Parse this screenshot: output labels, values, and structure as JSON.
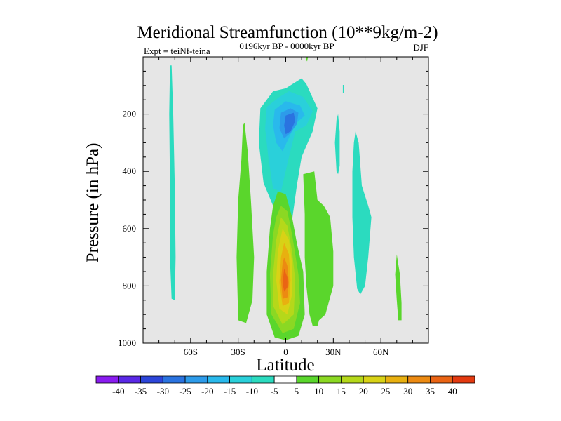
{
  "chart_data": {
    "type": "contour",
    "title": "Meridional Streamfunction (10**9kg/m-2)",
    "subtitle": "0196kyr BP - 0000kyr BP",
    "left_annotation": "Expt = teiNf-teina",
    "right_annotation": "DJF",
    "xlabel": "Latitude",
    "ylabel": "Pressure (in hPa)",
    "xlim": [
      -90,
      90
    ],
    "ylim": [
      1000,
      0
    ],
    "x_ticks": [
      {
        "value": -60,
        "label": "60S"
      },
      {
        "value": -30,
        "label": "30S"
      },
      {
        "value": 0,
        "label": "0"
      },
      {
        "value": 30,
        "label": "30N"
      },
      {
        "value": 60,
        "label": "60N"
      }
    ],
    "y_ticks": [
      {
        "value": 200,
        "label": "200"
      },
      {
        "value": 400,
        "label": "400"
      },
      {
        "value": 600,
        "label": "600"
      },
      {
        "value": 800,
        "label": "800"
      },
      {
        "value": 1000,
        "label": "1000"
      }
    ],
    "background_color": "#e6e6e6",
    "colorbar": {
      "colors": [
        "#8a1cf0",
        "#5a28e6",
        "#2c45d9",
        "#2a73e0",
        "#2d9bea",
        "#29b9ec",
        "#2ad0da",
        "#2bdbbf",
        "#ffffff",
        "#5ad62c",
        "#8bd823",
        "#b5d81a",
        "#d8d216",
        "#e8b010",
        "#ec8a12",
        "#ea6414",
        "#e33a10"
      ],
      "labels": [
        "-40",
        "-35",
        "-30",
        "-25",
        "-20",
        "-15",
        "-10",
        "-5",
        "5",
        "10",
        "15",
        "20",
        "25",
        "30",
        "35",
        "40"
      ]
    },
    "regions": [
      {
        "name": "sh-high-lat-cell",
        "color": "#2bdbbf",
        "points": [
          [
            -72,
            30
          ],
          [
            -71,
            200
          ],
          [
            -70,
            450
          ],
          [
            -69.5,
            700
          ],
          [
            -70,
            850
          ],
          [
            -72,
            845
          ],
          [
            -73,
            700
          ],
          [
            -73,
            450
          ],
          [
            -73.5,
            200
          ],
          [
            -73,
            30
          ]
        ]
      },
      {
        "name": "sh-subtropical-green-cell",
        "color": "#5ad62c",
        "points": [
          [
            -26,
            230
          ],
          [
            -24,
            330
          ],
          [
            -22,
            500
          ],
          [
            -20,
            700
          ],
          [
            -21,
            850
          ],
          [
            -25,
            930
          ],
          [
            -30,
            920
          ],
          [
            -31,
            700
          ],
          [
            -30,
            500
          ],
          [
            -28,
            360
          ],
          [
            -27,
            240
          ]
        ]
      },
      {
        "name": "upper-tropical-cell-outer",
        "color": "#2bdbbf",
        "points": [
          [
            -16,
            180
          ],
          [
            -8,
            120
          ],
          [
            0,
            110
          ],
          [
            10,
            75
          ],
          [
            13,
            95
          ],
          [
            20,
            180
          ],
          [
            17,
            260
          ],
          [
            10,
            350
          ],
          [
            7,
            450
          ],
          [
            3,
            610
          ],
          [
            -5,
            610
          ],
          [
            -8,
            520
          ],
          [
            -14,
            440
          ],
          [
            -17,
            300
          ]
        ]
      },
      {
        "name": "upper-tropical-cell-m10",
        "color": "#2ad0da",
        "points": [
          [
            -12,
            175
          ],
          [
            -4,
            140
          ],
          [
            2,
            120
          ],
          [
            11,
            140
          ],
          [
            17,
            190
          ],
          [
            13,
            240
          ],
          [
            6,
            260
          ],
          [
            2,
            350
          ],
          [
            -3,
            470
          ],
          [
            -8,
            460
          ],
          [
            -11,
            350
          ],
          [
            -13,
            250
          ]
        ]
      },
      {
        "name": "upper-tropical-cell-m15",
        "color": "#29b9ec",
        "points": [
          [
            -7,
            185
          ],
          [
            0,
            155
          ],
          [
            9,
            170
          ],
          [
            12,
            205
          ],
          [
            7,
            230
          ],
          [
            3,
            270
          ],
          [
            -2,
            330
          ],
          [
            -6,
            300
          ],
          [
            -8,
            240
          ]
        ]
      },
      {
        "name": "upper-tropical-cell-m20",
        "color": "#2d9bea",
        "points": [
          [
            -3,
            195
          ],
          [
            3,
            180
          ],
          [
            8,
            195
          ],
          [
            7,
            235
          ],
          [
            3,
            265
          ],
          [
            -1,
            285
          ],
          [
            -4,
            250
          ]
        ]
      },
      {
        "name": "upper-tropical-cell-m25",
        "color": "#2a73e0",
        "points": [
          [
            0,
            205
          ],
          [
            5,
            195
          ],
          [
            6,
            225
          ],
          [
            3,
            260
          ],
          [
            0,
            270
          ],
          [
            -1,
            240
          ]
        ]
      },
      {
        "name": "lower-tropical-cell-5",
        "color": "#5ad62c",
        "points": [
          [
            -5,
            470
          ],
          [
            0,
            480
          ],
          [
            4,
            560
          ],
          [
            7,
            650
          ],
          [
            11,
            750
          ],
          [
            12,
            900
          ],
          [
            8,
            975
          ],
          [
            0,
            990
          ],
          [
            -7,
            980
          ],
          [
            -12,
            900
          ],
          [
            -12,
            750
          ],
          [
            -10,
            600
          ],
          [
            -8,
            520
          ]
        ]
      },
      {
        "name": "lower-tropical-cell-10",
        "color": "#8bd823",
        "points": [
          [
            -3,
            520
          ],
          [
            1,
            540
          ],
          [
            4,
            620
          ],
          [
            8,
            760
          ],
          [
            9,
            860
          ],
          [
            5,
            950
          ],
          [
            -2,
            965
          ],
          [
            -9,
            900
          ],
          [
            -10,
            760
          ],
          [
            -8,
            620
          ],
          [
            -6,
            560
          ]
        ]
      },
      {
        "name": "lower-tropical-cell-15",
        "color": "#b5d81a",
        "points": [
          [
            -3,
            560
          ],
          [
            1,
            590
          ],
          [
            4,
            680
          ],
          [
            6,
            780
          ],
          [
            5,
            900
          ],
          [
            -2,
            935
          ],
          [
            -8,
            870
          ],
          [
            -8,
            760
          ],
          [
            -6,
            640
          ]
        ]
      },
      {
        "name": "lower-tropical-cell-20",
        "color": "#d8d216",
        "points": [
          [
            -2,
            600
          ],
          [
            2,
            640
          ],
          [
            4,
            720
          ],
          [
            4,
            830
          ],
          [
            1,
            900
          ],
          [
            -4,
            880
          ],
          [
            -6,
            780
          ],
          [
            -5,
            680
          ]
        ]
      },
      {
        "name": "lower-tropical-cell-25",
        "color": "#e8b010",
        "points": [
          [
            -1,
            650
          ],
          [
            2,
            690
          ],
          [
            3,
            780
          ],
          [
            2,
            860
          ],
          [
            -2,
            870
          ],
          [
            -4,
            790
          ],
          [
            -3,
            700
          ]
        ]
      },
      {
        "name": "lower-tropical-cell-30",
        "color": "#ec8a12",
        "points": [
          [
            -1,
            700
          ],
          [
            1,
            730
          ],
          [
            2,
            790
          ],
          [
            1,
            840
          ],
          [
            -2,
            845
          ],
          [
            -3,
            780
          ],
          [
            -2,
            720
          ]
        ]
      },
      {
        "name": "lower-tropical-cell-35",
        "color": "#ea6414",
        "points": [
          [
            -1,
            740
          ],
          [
            1,
            770
          ],
          [
            1,
            805
          ],
          [
            -1,
            820
          ],
          [
            -2,
            790
          ]
        ]
      },
      {
        "name": "nh-subtropical-green-cell",
        "color": "#5ad62c",
        "points": [
          [
            11,
            410
          ],
          [
            18,
            400
          ],
          [
            20,
            500
          ],
          [
            24,
            520
          ],
          [
            28,
            560
          ],
          [
            30,
            680
          ],
          [
            30,
            800
          ],
          [
            25,
            900
          ],
          [
            21,
            920
          ],
          [
            20,
            940
          ],
          [
            17,
            940
          ],
          [
            15,
            900
          ],
          [
            13,
            800
          ],
          [
            12,
            700
          ],
          [
            12,
            550
          ]
        ]
      },
      {
        "name": "nh-upper-small-teal",
        "color": "#2bdbbf",
        "points": [
          [
            32,
            220
          ],
          [
            33,
            200
          ],
          [
            34,
            260
          ],
          [
            34,
            380
          ],
          [
            33,
            410
          ],
          [
            32,
            400
          ],
          [
            31,
            300
          ]
        ]
      },
      {
        "name": "nh-midlat-cell",
        "color": "#2bdbbf",
        "points": [
          [
            44,
            260
          ],
          [
            46,
            300
          ],
          [
            48,
            450
          ],
          [
            52,
            520
          ],
          [
            54,
            560
          ],
          [
            52,
            700
          ],
          [
            50,
            800
          ],
          [
            47,
            830
          ],
          [
            45,
            810
          ],
          [
            43,
            700
          ],
          [
            42,
            560
          ],
          [
            42,
            400
          ],
          [
            43,
            300
          ]
        ]
      },
      {
        "name": "nh-high-lat-green",
        "color": "#5ad62c",
        "points": [
          [
            70,
            690
          ],
          [
            72,
            760
          ],
          [
            73,
            860
          ],
          [
            73,
            920
          ],
          [
            71,
            920
          ],
          [
            70,
            850
          ],
          [
            69,
            760
          ]
        ]
      },
      {
        "name": "nh-small-top-teal",
        "color": "#2bdbbf",
        "points": [
          [
            36,
            98
          ],
          [
            36.6,
            98
          ],
          [
            36.6,
            125
          ],
          [
            36,
            125
          ]
        ]
      },
      {
        "name": "top-green-sliver",
        "color": "#5ad62c",
        "points": [
          [
            13,
            0
          ],
          [
            14,
            0
          ],
          [
            13.5,
            16
          ],
          [
            13,
            12
          ]
        ]
      }
    ]
  }
}
